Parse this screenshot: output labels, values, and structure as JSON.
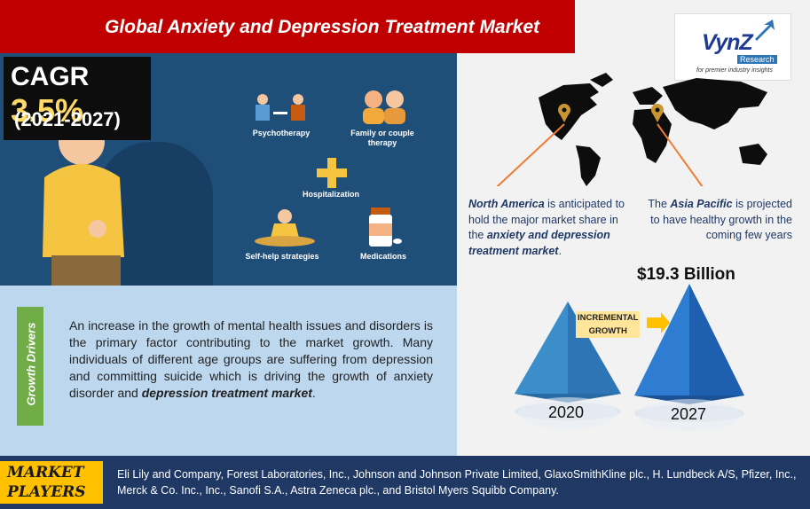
{
  "title": "Global Anxiety and Depression Treatment Market",
  "logo": {
    "brand": "VynZ",
    "sub": "Research",
    "tagline": "for premier industry insights"
  },
  "cagr": {
    "label": "CAGR",
    "value": "3.5%",
    "period": "(2021-2027)"
  },
  "treatments": [
    {
      "label": "Psychotherapy"
    },
    {
      "label": "Family or couple therapy"
    },
    {
      "label": "Hospitalization"
    },
    {
      "label": "Self-help strategies"
    },
    {
      "label": "Medications"
    }
  ],
  "growth_drivers": {
    "label": "Growth Drivers",
    "text_main": "An increase in the growth of mental health issues and disorders is the primary factor contributing to the market growth. Many individuals of different age groups are suffering from depression and committing suicide which is driving the growth of anxiety disorder and ",
    "text_emph": "depression treatment market",
    "text_end": "."
  },
  "regions": {
    "north_america": {
      "name": "North America",
      "text1": " is anticipated to hold the major market share in the ",
      "emph": "anxiety and depression treatment market",
      "text2": "."
    },
    "asia_pacific": {
      "pre": "The ",
      "name": "Asia Pacific",
      "text": " is projected to have healthy growth in the coming few years"
    }
  },
  "market_value": {
    "amount": "$19.3 Billion",
    "incremental_l1": "INCREMENTAL",
    "incremental_l2": "GROWTH",
    "year_start": "2020",
    "year_end": "2027"
  },
  "market_players": {
    "label_l1": "MARKET",
    "label_l2": "PLAYERS",
    "list": "Eli Lily and Company, Forest Laboratories, Inc., Johnson and Johnson Private Limited, GlaxoSmithKline plc., H. Lundbeck A/S, Pfizer, Inc., Merck & Co. Inc., Inc., Sanofi S.A., Astra Zeneca plc., and Bristol Myers Squibb Company."
  },
  "colors": {
    "title_bg": "#c00000",
    "panel_navy": "#1f4e79",
    "cagr_value": "#ffd966",
    "drivers_bg": "#bdd7ee",
    "drivers_tab": "#70ad47",
    "footer_bg": "#1f3864",
    "players_tab": "#ffc000",
    "pin": "#c9952e"
  }
}
